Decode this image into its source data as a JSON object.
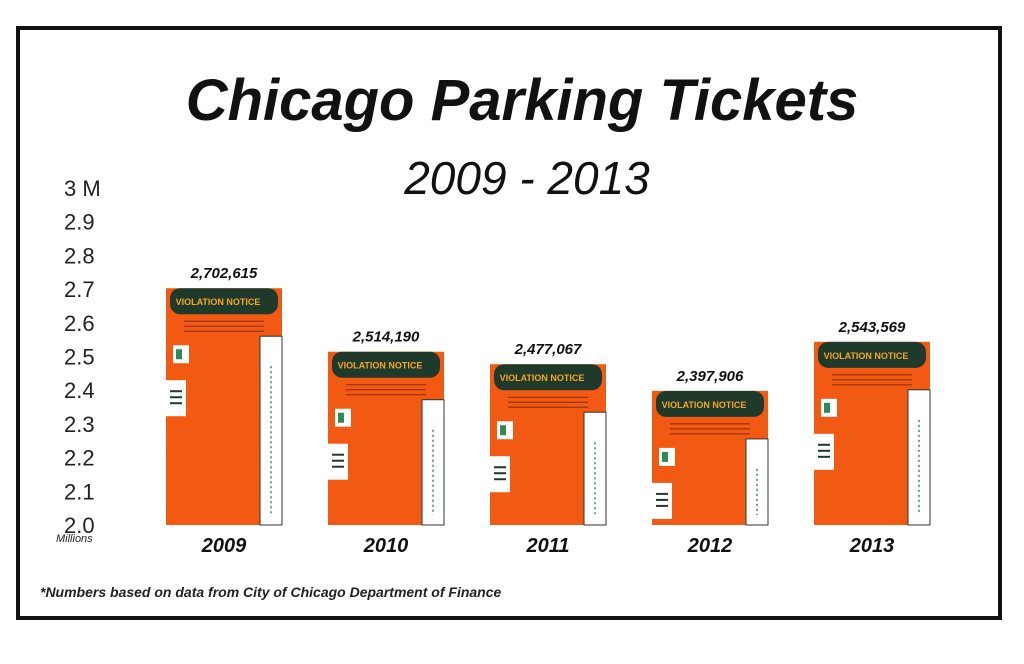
{
  "chart_data": {
    "type": "bar",
    "title": "Chicago Parking Tickets",
    "subtitle": "2009 - 2013",
    "categories": [
      "2009",
      "2010",
      "2011",
      "2012",
      "2013"
    ],
    "values": [
      2702615,
      2514190,
      2477067,
      2397906,
      2543569
    ],
    "value_labels": [
      "2,702,615",
      "2,514,190",
      "2,477,067",
      "2,397,906",
      "2,543,569"
    ],
    "ylim": [
      2.0,
      3.0
    ],
    "yticks": [
      {
        "value": 2.0,
        "label": "2.0"
      },
      {
        "value": 2.1,
        "label": "2.1"
      },
      {
        "value": 2.2,
        "label": "2.2"
      },
      {
        "value": 2.3,
        "label": "2.3"
      },
      {
        "value": 2.4,
        "label": "2.4"
      },
      {
        "value": 2.5,
        "label": "2.5"
      },
      {
        "value": 2.6,
        "label": "2.6"
      },
      {
        "value": 2.7,
        "label": "2.7"
      },
      {
        "value": 2.8,
        "label": "2.8"
      },
      {
        "value": 2.9,
        "label": "2.9"
      },
      {
        "value": 3.0,
        "label": "3 M"
      }
    ],
    "units_label": "Millions",
    "grid": false,
    "legend": "none",
    "footnote": "*Numbers based on data from City of Chicago Department of Finance",
    "bar_label": "VIOLATION NOTICE",
    "colors": {
      "bar": "#f25a13",
      "bar_top": "#1f3a2a",
      "bar_label": "#f5a623",
      "stub": "#ffffff",
      "accent": "#2e8b57"
    }
  }
}
